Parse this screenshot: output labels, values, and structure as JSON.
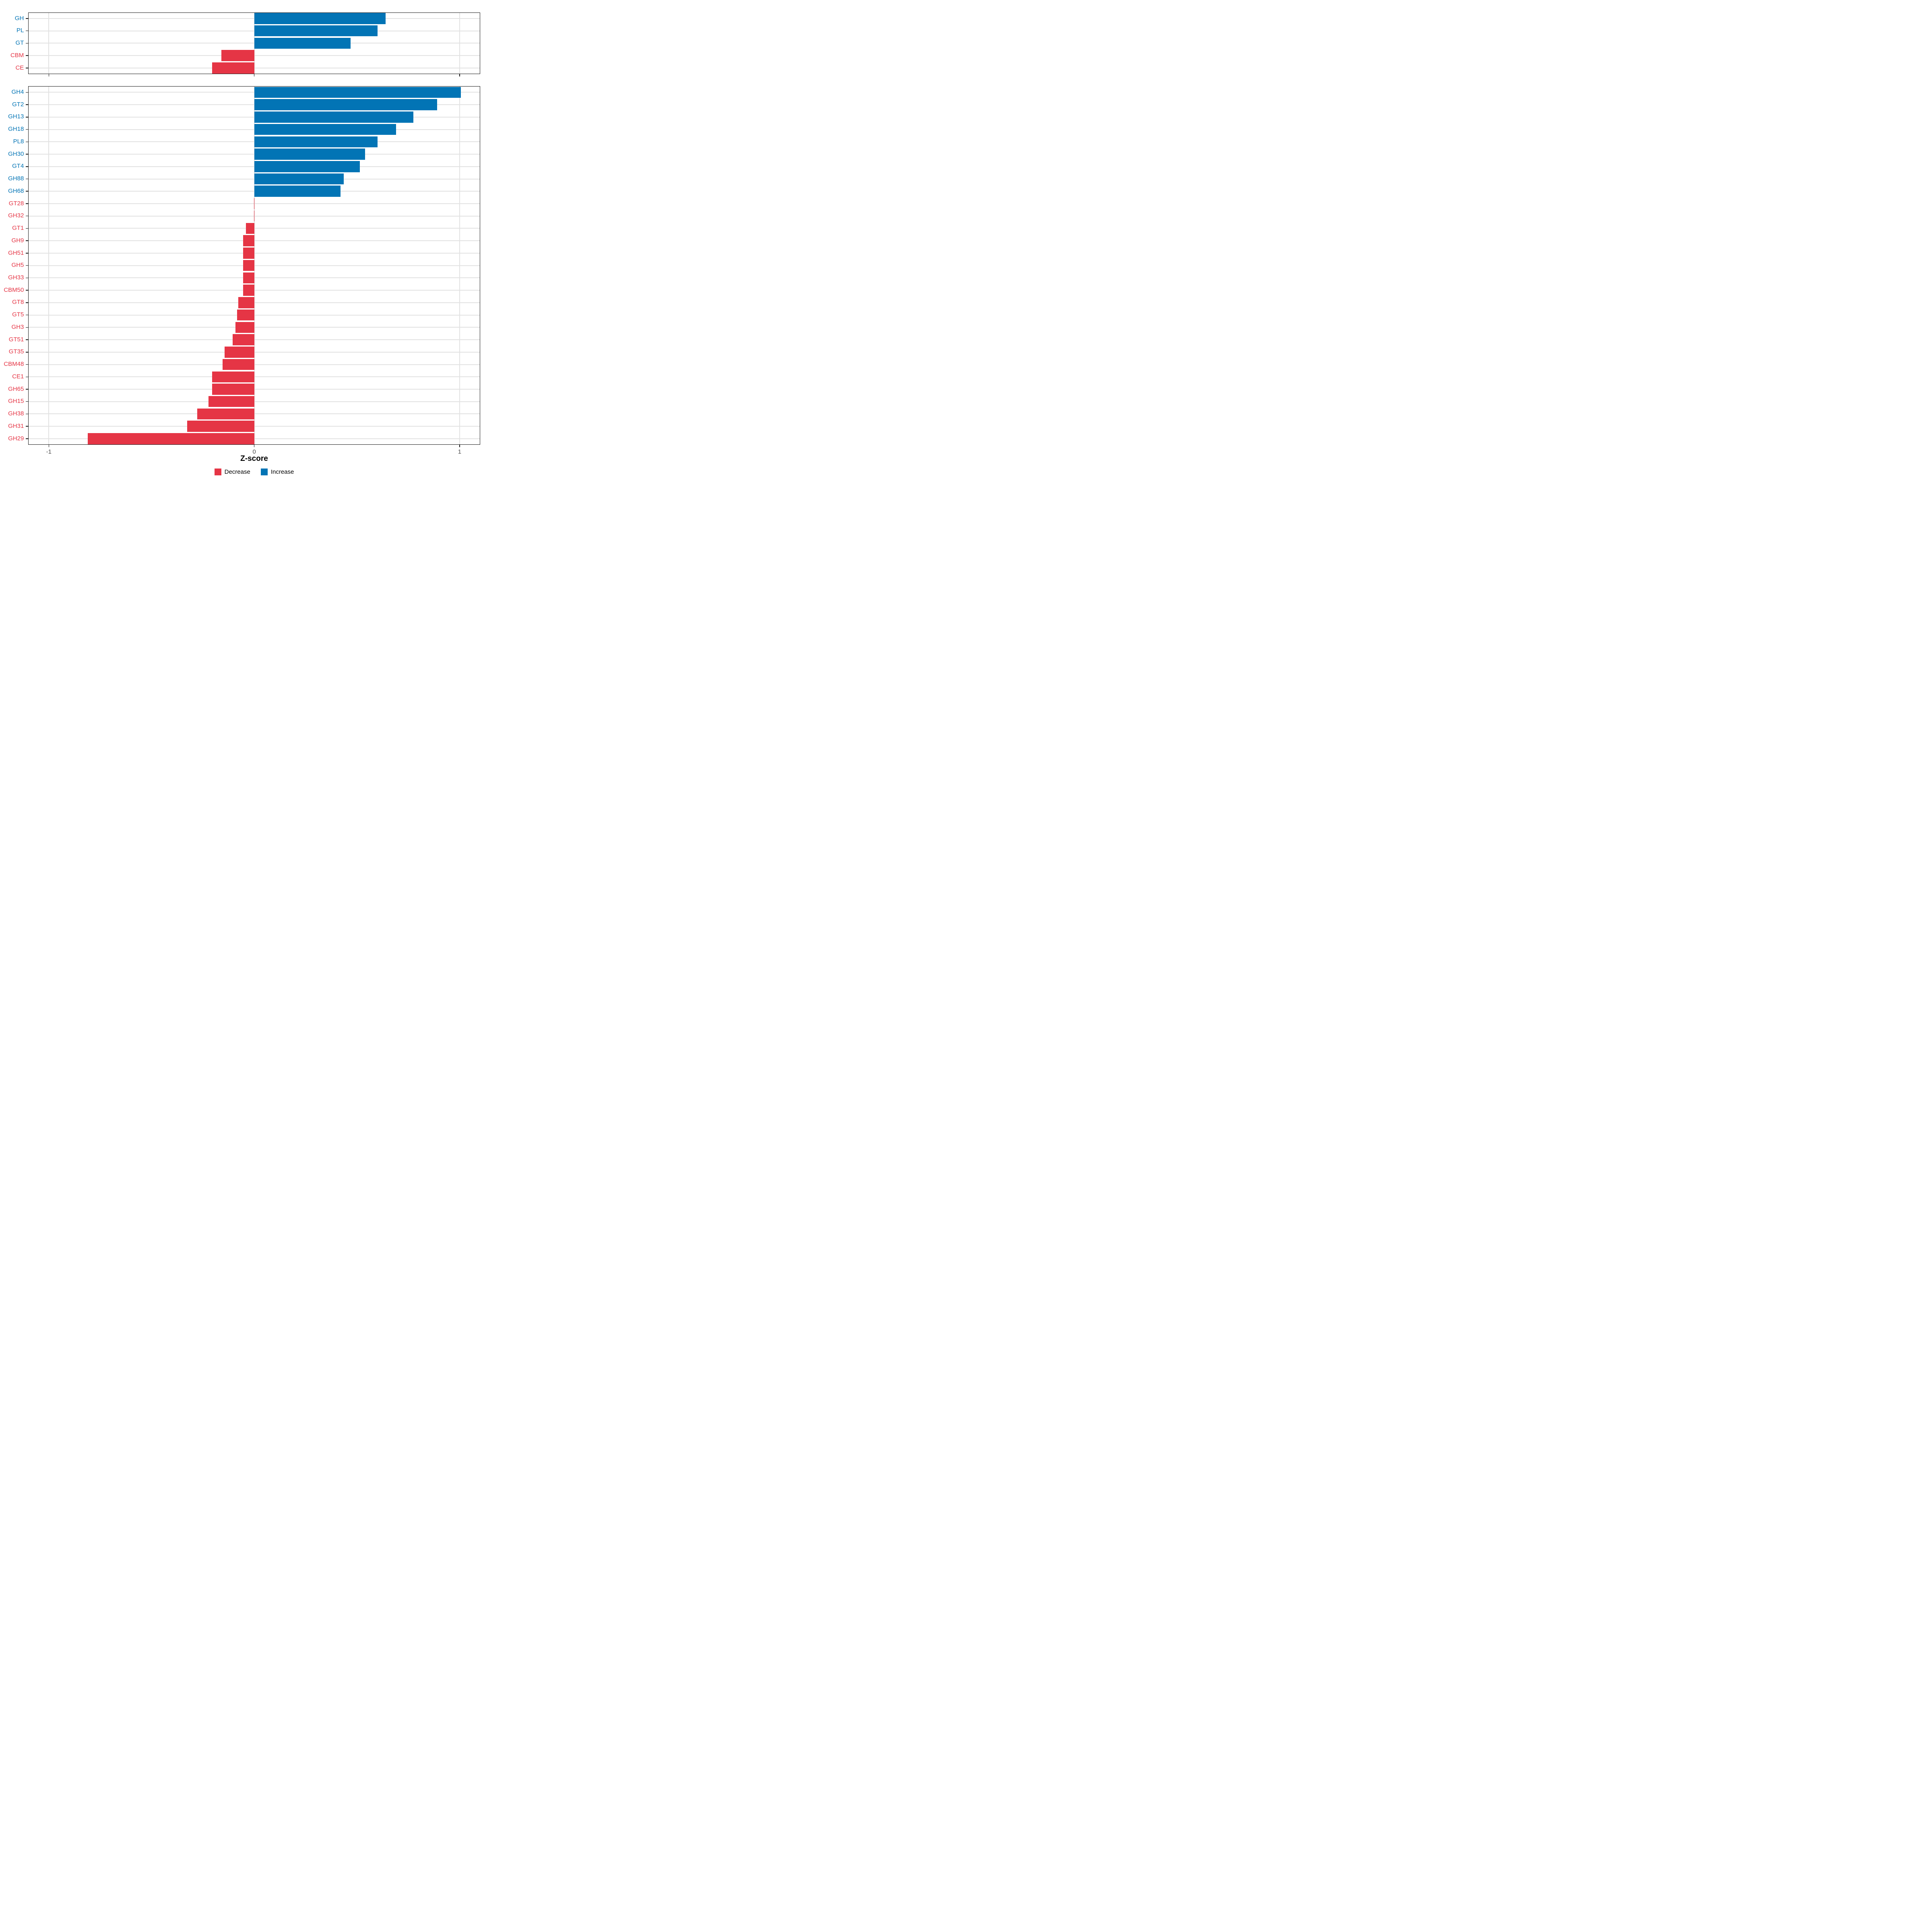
{
  "colors": {
    "increase": "#0274B5",
    "decrease": "#E53545",
    "grid": "#E2E2E2",
    "axis_line": "#1A1A1A",
    "tick_label": "#4D4D4D"
  },
  "axis": {
    "title": "Z-score",
    "range": [
      -1.1,
      1.1
    ],
    "ticks": [
      -1,
      0,
      1
    ],
    "tick_labels": [
      "-1",
      "0",
      "1"
    ]
  },
  "legend": {
    "items": [
      {
        "label": "Decrease",
        "color": "#E53545"
      },
      {
        "label": "Increase",
        "color": "#0274B5"
      }
    ]
  },
  "chart_data": [
    {
      "type": "bar",
      "orientation": "horizontal",
      "panel": "top-families",
      "xlabel": "Z-score",
      "xlim": [
        -1.1,
        1.1
      ],
      "grid": true,
      "categories": [
        "GH",
        "PL",
        "GT",
        "CBM",
        "CE"
      ],
      "values": [
        0.64,
        0.6,
        0.47,
        -0.16,
        -0.205
      ]
    },
    {
      "type": "bar",
      "orientation": "horizontal",
      "panel": "bottom-subfamilies",
      "xlabel": "Z-score",
      "xlim": [
        -1.1,
        1.1
      ],
      "grid": true,
      "categories": [
        "GH4",
        "GT2",
        "GH13",
        "GH18",
        "PL8",
        "GH30",
        "GT4",
        "GH88",
        "GH68",
        "GT28",
        "GH32",
        "GT1",
        "GH9",
        "GH51",
        "GH5",
        "GH33",
        "CBM50",
        "GT8",
        "GT5",
        "GH3",
        "GT51",
        "GT35",
        "CBM48",
        "CE1",
        "GH65",
        "GH15",
        "GH38",
        "GH31",
        "GH29"
      ],
      "values": [
        1.005,
        0.89,
        0.775,
        0.69,
        0.6,
        0.54,
        0.515,
        0.435,
        0.42,
        -0.002,
        -0.002,
        -0.04,
        -0.055,
        -0.055,
        -0.055,
        -0.055,
        -0.055,
        -0.078,
        -0.084,
        -0.092,
        -0.105,
        -0.145,
        -0.155,
        -0.205,
        -0.205,
        -0.222,
        -0.278,
        -0.327,
        -0.81
      ]
    }
  ]
}
